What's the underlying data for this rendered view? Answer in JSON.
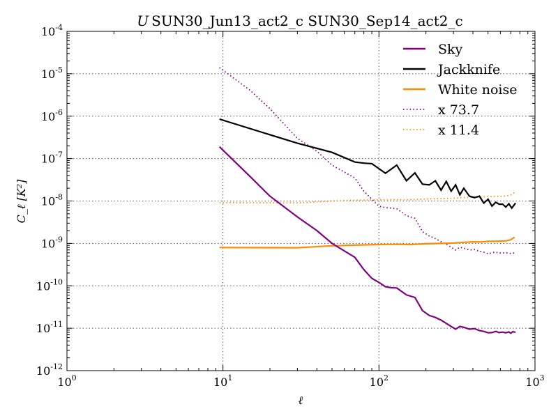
{
  "chart_data": {
    "type": "line",
    "title": {
      "italic": "U",
      "text": "SUN30_Jun13_act2_c SUN30_Sep14_act2_c"
    },
    "xlabel": "ℓ",
    "ylabel": "C_ℓ [K²]",
    "xscale": "log",
    "yscale": "log",
    "xlim": [
      1,
      1000
    ],
    "ylim": [
      1e-12,
      0.0001
    ],
    "x_ticks": [
      {
        "base": "10",
        "exp": "0",
        "value": 1
      },
      {
        "base": "10",
        "exp": "1",
        "value": 10
      },
      {
        "base": "10",
        "exp": "2",
        "value": 100
      },
      {
        "base": "10",
        "exp": "3",
        "value": 1000
      }
    ],
    "y_ticks": [
      {
        "base": "10",
        "exp": "-4",
        "value": 0.0001
      },
      {
        "base": "10",
        "exp": "-5",
        "value": 1e-05
      },
      {
        "base": "10",
        "exp": "-6",
        "value": 1e-06
      },
      {
        "base": "10",
        "exp": "-7",
        "value": 1e-07
      },
      {
        "base": "10",
        "exp": "-8",
        "value": 1e-08
      },
      {
        "base": "10",
        "exp": "-9",
        "value": 1e-09
      },
      {
        "base": "10",
        "exp": "-10",
        "value": 1e-10
      },
      {
        "base": "10",
        "exp": "-11",
        "value": 1e-11
      },
      {
        "base": "10",
        "exp": "-12",
        "value": 1e-12
      }
    ],
    "grid": true,
    "legend_position": "top-right",
    "series": [
      {
        "name": "Sky",
        "color": "#800080",
        "style": "solid",
        "points": [
          [
            9.5,
            1.9e-07
          ],
          [
            15,
            3.7e-08
          ],
          [
            20,
            1.3e-08
          ],
          [
            30,
            4.2e-09
          ],
          [
            40,
            2e-09
          ],
          [
            50,
            1e-09
          ],
          [
            70,
            4.7e-10
          ],
          [
            80,
            2.4e-10
          ],
          [
            90,
            1.5e-10
          ],
          [
            100,
            1.2e-10
          ],
          [
            110,
            9.5e-11
          ],
          [
            120,
            9e-11
          ],
          [
            130,
            8.9e-11
          ],
          [
            150,
            6.1e-11
          ],
          [
            170,
            5.3e-11
          ],
          [
            190,
            2.6e-11
          ],
          [
            210,
            2e-11
          ],
          [
            230,
            1.8e-11
          ],
          [
            250,
            1.55e-11
          ],
          [
            270,
            1.3e-11
          ],
          [
            290,
            1.1e-11
          ],
          [
            310,
            9.5e-12
          ],
          [
            330,
            1.1e-11
          ],
          [
            350,
            1.05e-11
          ],
          [
            380,
            9.5e-12
          ],
          [
            410,
            9.8e-12
          ],
          [
            440,
            8.8e-12
          ],
          [
            470,
            8.4e-12
          ],
          [
            500,
            7.8e-12
          ],
          [
            530,
            7.9e-12
          ],
          [
            560,
            8.4e-12
          ],
          [
            590,
            7.9e-12
          ],
          [
            620,
            8.1e-12
          ],
          [
            650,
            7.8e-12
          ],
          [
            680,
            8.2e-12
          ],
          [
            700,
            7.6e-12
          ],
          [
            720,
            8.3e-12
          ],
          [
            750,
            8e-12
          ]
        ]
      },
      {
        "name": "Jackknife",
        "color": "#000000",
        "style": "solid",
        "points": [
          [
            9.5,
            8.5e-07
          ],
          [
            30,
            2.3e-07
          ],
          [
            50,
            1.4e-07
          ],
          [
            70,
            8.3e-08
          ],
          [
            80,
            7.8e-08
          ],
          [
            90,
            7.6e-08
          ],
          [
            110,
            4.5e-08
          ],
          [
            130,
            7e-08
          ],
          [
            150,
            3e-08
          ],
          [
            170,
            4.6e-08
          ],
          [
            190,
            2.5e-08
          ],
          [
            210,
            2.4e-08
          ],
          [
            230,
            3e-08
          ],
          [
            250,
            1.8e-08
          ],
          [
            270,
            2.9e-08
          ],
          [
            290,
            1.7e-08
          ],
          [
            310,
            2.4e-08
          ],
          [
            330,
            1.4e-08
          ],
          [
            350,
            2e-08
          ],
          [
            380,
            1.3e-08
          ],
          [
            410,
            1.2e-08
          ],
          [
            440,
            1.3e-08
          ],
          [
            470,
            8.9e-09
          ],
          [
            500,
            1.1e-08
          ],
          [
            530,
            7.6e-09
          ],
          [
            560,
            9.3e-09
          ],
          [
            590,
            8.4e-09
          ],
          [
            620,
            8.4e-09
          ],
          [
            650,
            7.2e-09
          ],
          [
            680,
            8.6e-09
          ],
          [
            710,
            6.8e-09
          ],
          [
            750,
            8.9e-09
          ]
        ]
      },
      {
        "name": "White noise",
        "color": "#ff8c00",
        "style": "solid",
        "points": [
          [
            9.5,
            8e-10
          ],
          [
            30,
            7.9e-10
          ],
          [
            50,
            8.8e-10
          ],
          [
            70,
            9.1e-10
          ],
          [
            100,
            9.4e-10
          ],
          [
            130,
            9.5e-10
          ],
          [
            160,
            9.4e-10
          ],
          [
            200,
            9.8e-10
          ],
          [
            250,
            1e-09
          ],
          [
            300,
            1.02e-09
          ],
          [
            350,
            1.06e-09
          ],
          [
            400,
            1.09e-09
          ],
          [
            450,
            1.08e-09
          ],
          [
            500,
            1.12e-09
          ],
          [
            550,
            1.12e-09
          ],
          [
            600,
            1.13e-09
          ],
          [
            650,
            1.15e-09
          ],
          [
            700,
            1.22e-09
          ],
          [
            740,
            1.4e-09
          ]
        ]
      },
      {
        "name": "x 73.7",
        "color": "#800080",
        "style": "dotted",
        "points": [
          [
            9.5,
            1.4e-05
          ],
          [
            15,
            4e-06
          ],
          [
            20,
            1.5e-06
          ],
          [
            30,
            3e-07
          ],
          [
            40,
            1.5e-07
          ],
          [
            50,
            7e-08
          ],
          [
            70,
            3.5e-08
          ],
          [
            80,
            1.7e-08
          ],
          [
            90,
            1.1e-08
          ],
          [
            100,
            7.5e-09
          ],
          [
            110,
            7e-09
          ],
          [
            130,
            6.6e-09
          ],
          [
            150,
            4.5e-09
          ],
          [
            170,
            3.9e-09
          ],
          [
            190,
            1.9e-09
          ],
          [
            210,
            1.5e-09
          ],
          [
            230,
            1.3e-09
          ],
          [
            250,
            1.1e-09
          ],
          [
            270,
            9.6e-10
          ],
          [
            290,
            8.1e-10
          ],
          [
            310,
            7e-10
          ],
          [
            330,
            8.1e-10
          ],
          [
            350,
            7.7e-10
          ],
          [
            380,
            7e-10
          ],
          [
            410,
            7.2e-10
          ],
          [
            440,
            6.5e-10
          ],
          [
            470,
            6.2e-10
          ],
          [
            500,
            5.7e-10
          ],
          [
            550,
            6.2e-10
          ],
          [
            600,
            5.9e-10
          ],
          [
            650,
            6e-10
          ],
          [
            700,
            5.8e-10
          ],
          [
            750,
            6e-10
          ]
        ]
      },
      {
        "name": "x 11.4",
        "color": "#ff8c00",
        "style": "dotted",
        "points": [
          [
            9.5,
            9.1e-09
          ],
          [
            30,
            9e-09
          ],
          [
            50,
            1e-08
          ],
          [
            70,
            1.04e-08
          ],
          [
            100,
            1.07e-08
          ],
          [
            130,
            1.08e-08
          ],
          [
            160,
            1.07e-08
          ],
          [
            200,
            1.12e-08
          ],
          [
            250,
            1.14e-08
          ],
          [
            300,
            1.16e-08
          ],
          [
            350,
            1.2e-08
          ],
          [
            400,
            1.24e-08
          ],
          [
            450,
            1.23e-08
          ],
          [
            500,
            1.28e-08
          ],
          [
            550,
            1.28e-08
          ],
          [
            600,
            1.29e-08
          ],
          [
            650,
            1.31e-08
          ],
          [
            700,
            1.39e-08
          ],
          [
            740,
            1.6e-08
          ]
        ]
      }
    ]
  }
}
